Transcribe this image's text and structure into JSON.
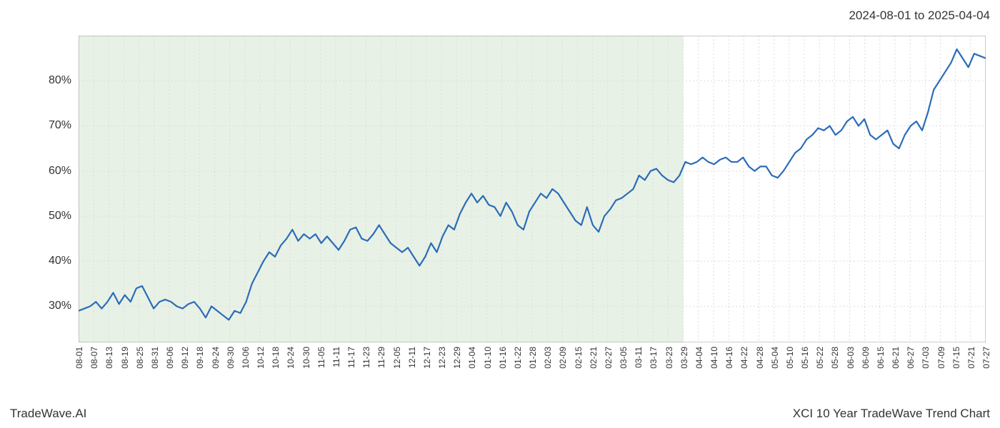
{
  "date_range_label": "2024-08-01 to 2025-04-04",
  "footer_left": "TradeWave.AI",
  "footer_right": "XCI 10 Year TradeWave Trend Chart",
  "chart": {
    "type": "line",
    "background_color": "#ffffff",
    "line_color": "#2a6cb8",
    "line_width": 2.2,
    "grid_color": "#dddddd",
    "grid_dash": "2,3",
    "border_color": "#999999",
    "highlight_fill": "#d6e5d1",
    "highlight_opacity": 0.55,
    "highlight_x_start": 0,
    "highlight_x_end": 40,
    "y_axis": {
      "min": 22,
      "max": 90,
      "ticks": [
        30,
        40,
        50,
        60,
        70,
        80
      ],
      "tick_suffix": "%",
      "label_fontsize": 16,
      "label_color": "#333333"
    },
    "x_axis": {
      "labels": [
        "08-01",
        "08-07",
        "08-13",
        "08-19",
        "08-25",
        "08-31",
        "09-06",
        "09-12",
        "09-18",
        "09-24",
        "09-30",
        "10-06",
        "10-12",
        "10-18",
        "10-24",
        "10-30",
        "11-05",
        "11-11",
        "11-17",
        "11-23",
        "11-29",
        "12-05",
        "12-11",
        "12-17",
        "12-23",
        "12-29",
        "01-04",
        "01-10",
        "01-16",
        "01-22",
        "01-28",
        "02-03",
        "02-09",
        "02-15",
        "02-21",
        "02-27",
        "03-05",
        "03-11",
        "03-17",
        "03-23",
        "03-29",
        "04-04",
        "04-10",
        "04-16",
        "04-22",
        "04-28",
        "05-04",
        "05-10",
        "05-16",
        "05-22",
        "05-28",
        "06-03",
        "06-09",
        "06-15",
        "06-21",
        "06-27",
        "07-03",
        "07-09",
        "07-15",
        "07-21",
        "07-27"
      ],
      "label_fontsize": 12,
      "label_color": "#333333",
      "rotation": 90
    },
    "series": {
      "values": [
        29,
        29.5,
        30,
        31,
        29.5,
        31,
        33,
        30.5,
        32.5,
        31,
        34,
        34.5,
        32,
        29.5,
        31,
        31.5,
        31,
        30,
        29.5,
        30.5,
        31,
        29.5,
        27.5,
        30,
        29,
        28,
        27,
        29,
        28.5,
        31,
        35,
        37.5,
        40,
        42,
        41,
        43.5,
        45,
        47,
        44.5,
        46,
        45,
        46,
        44,
        45.5,
        44,
        42.5,
        44.5,
        47,
        47.5,
        45,
        44.5,
        46,
        48,
        46,
        44,
        43,
        42,
        43,
        41,
        39,
        41,
        44,
        42,
        45.5,
        48,
        47,
        50.5,
        53,
        55,
        53,
        54.5,
        52.5,
        52,
        50,
        53,
        51,
        48,
        47,
        51,
        53,
        55,
        54,
        56,
        55,
        53,
        51,
        49,
        48,
        52,
        48,
        46.5,
        50,
        51.5,
        53.5,
        54,
        55,
        56,
        59,
        58,
        60,
        60.5,
        59,
        58,
        57.5,
        59,
        62,
        61.5,
        62,
        63,
        62,
        61.5,
        62.5,
        63,
        62,
        62,
        63,
        61,
        60,
        61,
        61,
        59,
        58.5,
        60,
        62,
        64,
        65,
        67,
        68,
        69.5,
        69,
        70,
        68,
        69,
        71,
        72,
        70,
        71.5,
        68,
        67,
        68,
        69,
        66,
        65,
        68,
        70,
        71,
        69,
        73,
        78,
        80,
        82,
        84,
        87,
        85,
        83,
        86,
        85.5,
        85
      ]
    }
  }
}
